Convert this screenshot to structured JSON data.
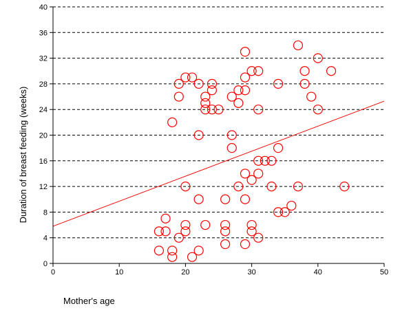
{
  "chart_data": {
    "type": "scatter",
    "title": "",
    "xlabel": "Mother's age",
    "ylabel": "Duration of breast feeding (weeks)",
    "xlim": [
      0,
      50
    ],
    "ylim": [
      0,
      40
    ],
    "x_ticks": [
      "0",
      "10",
      "20",
      "30",
      "40",
      "50"
    ],
    "y_ticks": [
      "0",
      "4",
      "8",
      "12",
      "16",
      "20",
      "24",
      "28",
      "32",
      "36",
      "40"
    ],
    "grid": "horizontal dashed",
    "legend": "none",
    "marker_color": "#ff0000",
    "line_color": "#ff0000",
    "regression_line": {
      "x": [
        0,
        50
      ],
      "y": [
        5.8,
        25.3
      ]
    },
    "points": [
      {
        "x": 16,
        "y": 2
      },
      {
        "x": 16,
        "y": 5
      },
      {
        "x": 17,
        "y": 5
      },
      {
        "x": 17,
        "y": 7
      },
      {
        "x": 18,
        "y": 1
      },
      {
        "x": 18,
        "y": 2
      },
      {
        "x": 18,
        "y": 22
      },
      {
        "x": 19,
        "y": 4
      },
      {
        "x": 19,
        "y": 26
      },
      {
        "x": 19,
        "y": 28
      },
      {
        "x": 20,
        "y": 5
      },
      {
        "x": 20,
        "y": 6
      },
      {
        "x": 20,
        "y": 12
      },
      {
        "x": 20,
        "y": 29
      },
      {
        "x": 21,
        "y": 1
      },
      {
        "x": 21,
        "y": 29
      },
      {
        "x": 22,
        "y": 2
      },
      {
        "x": 22,
        "y": 10
      },
      {
        "x": 22,
        "y": 20
      },
      {
        "x": 22,
        "y": 28
      },
      {
        "x": 23,
        "y": 6
      },
      {
        "x": 23,
        "y": 24
      },
      {
        "x": 23,
        "y": 25
      },
      {
        "x": 23,
        "y": 26
      },
      {
        "x": 24,
        "y": 24
      },
      {
        "x": 24,
        "y": 27
      },
      {
        "x": 24,
        "y": 28
      },
      {
        "x": 25,
        "y": 24
      },
      {
        "x": 26,
        "y": 3
      },
      {
        "x": 26,
        "y": 5
      },
      {
        "x": 26,
        "y": 6
      },
      {
        "x": 26,
        "y": 10
      },
      {
        "x": 27,
        "y": 18
      },
      {
        "x": 27,
        "y": 20
      },
      {
        "x": 27,
        "y": 26
      },
      {
        "x": 28,
        "y": 12
      },
      {
        "x": 28,
        "y": 25
      },
      {
        "x": 28,
        "y": 27
      },
      {
        "x": 29,
        "y": 3
      },
      {
        "x": 29,
        "y": 10
      },
      {
        "x": 29,
        "y": 14
      },
      {
        "x": 29,
        "y": 27
      },
      {
        "x": 29,
        "y": 29
      },
      {
        "x": 29,
        "y": 33
      },
      {
        "x": 30,
        "y": 5
      },
      {
        "x": 30,
        "y": 6
      },
      {
        "x": 30,
        "y": 13
      },
      {
        "x": 30,
        "y": 30
      },
      {
        "x": 31,
        "y": 4
      },
      {
        "x": 31,
        "y": 14
      },
      {
        "x": 31,
        "y": 16
      },
      {
        "x": 31,
        "y": 24
      },
      {
        "x": 31,
        "y": 30
      },
      {
        "x": 32,
        "y": 16
      },
      {
        "x": 33,
        "y": 12
      },
      {
        "x": 33,
        "y": 16
      },
      {
        "x": 34,
        "y": 8
      },
      {
        "x": 34,
        "y": 18
      },
      {
        "x": 34,
        "y": 28
      },
      {
        "x": 35,
        "y": 8
      },
      {
        "x": 36,
        "y": 9
      },
      {
        "x": 37,
        "y": 12
      },
      {
        "x": 37,
        "y": 34
      },
      {
        "x": 38,
        "y": 28
      },
      {
        "x": 38,
        "y": 30
      },
      {
        "x": 39,
        "y": 26
      },
      {
        "x": 40,
        "y": 24
      },
      {
        "x": 40,
        "y": 32
      },
      {
        "x": 42,
        "y": 30
      },
      {
        "x": 44,
        "y": 12
      }
    ]
  }
}
